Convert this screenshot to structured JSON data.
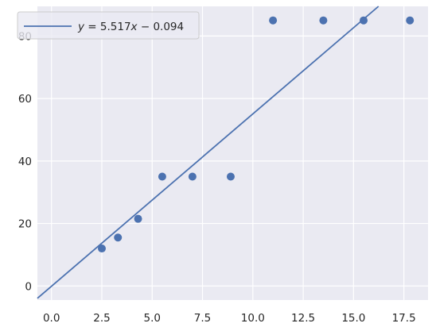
{
  "chart_data": {
    "type": "scatter",
    "title": "",
    "xlabel": "",
    "ylabel": "",
    "xlim": [
      -0.7,
      18.7
    ],
    "ylim": [
      -4.5,
      89.5
    ],
    "x_ticks": [
      0.0,
      2.5,
      5.0,
      7.5,
      10.0,
      12.5,
      15.0,
      17.5
    ],
    "x_tick_labels": [
      "0.0",
      "2.5",
      "5.0",
      "7.5",
      "10.0",
      "12.5",
      "15.0",
      "17.5"
    ],
    "y_ticks": [
      0,
      20,
      40,
      60,
      80
    ],
    "y_tick_labels": [
      "0",
      "20",
      "40",
      "60",
      "80"
    ],
    "grid": true,
    "legend_position": "top-left",
    "series": [
      {
        "kind": "scatter",
        "x": [
          2.5,
          3.3,
          4.3,
          5.5,
          7.0,
          8.9,
          11.0,
          13.5,
          15.5,
          17.8
        ],
        "y": [
          12,
          15.5,
          21.5,
          35,
          35,
          35,
          85,
          85,
          85,
          85
        ],
        "color": "#4c72b0"
      },
      {
        "kind": "line",
        "name": "$y = 5.517x - 0.094$",
        "slope": 5.517,
        "intercept": -0.094,
        "color": "#4c72b0"
      }
    ],
    "legend": {
      "label_parts": [
        "y",
        " = 5.517",
        "x",
        " − 0.094"
      ]
    }
  },
  "colors": {
    "plot_background": "#eaeaf2",
    "grid": "#ffffff",
    "series": "#4c72b0"
  }
}
